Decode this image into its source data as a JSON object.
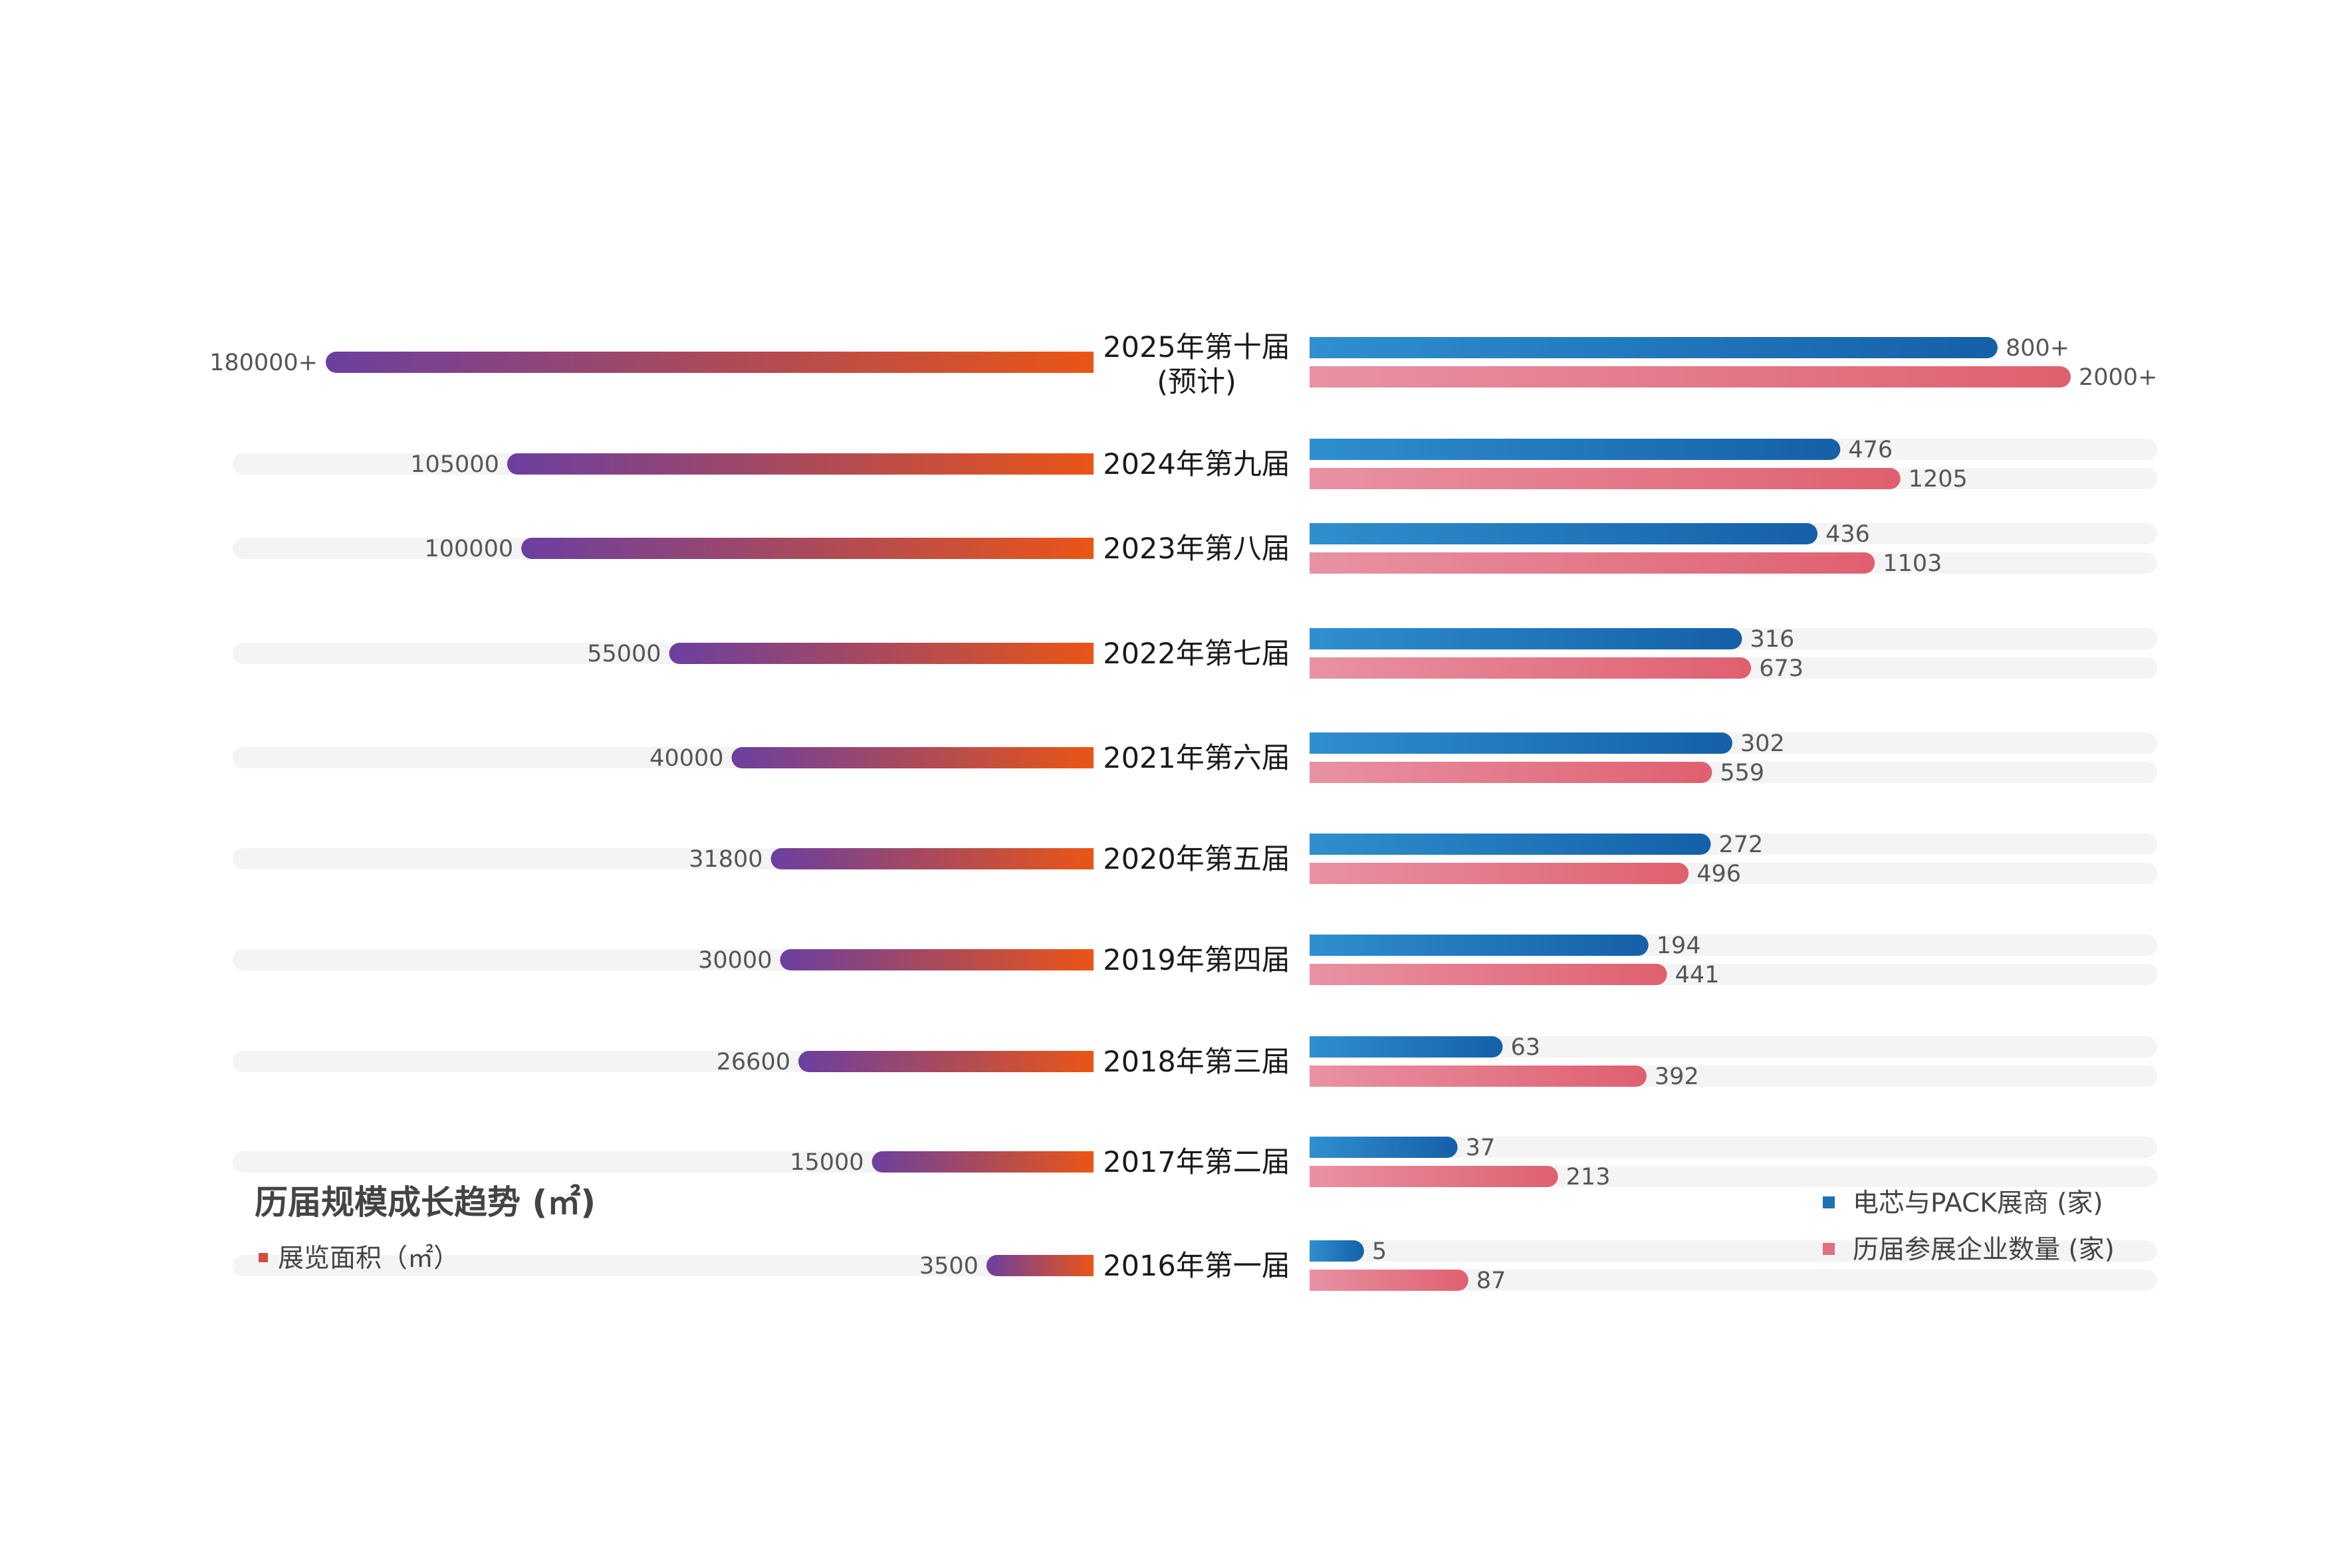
{
  "chart_data": {
    "type": "bar",
    "title": "历届规模成长趋势 (㎡)",
    "left_legend": "展览面积（㎡）",
    "right_legend": [
      "电芯与PACK展商 (家)",
      "历届参展企业数量 (家)"
    ],
    "colors": {
      "area_start": "#6b3fa0",
      "area_end": "#ea5516",
      "blue_start": "#2f8fcf",
      "blue_end": "#1560a8",
      "pink_start": "#e892a4",
      "pink_end": "#df606f",
      "track": "#f4f4f4",
      "legend_blue": "#1f6fb5",
      "legend_pink": "#e0707e"
    },
    "categories": [
      "2025年第十届",
      "2024年第九届",
      "2023年第八届",
      "2022年第七届",
      "2021年第六届",
      "2020年第五届",
      "2019年第四届",
      "2018年第三届",
      "2017年第二届",
      "2016年第一届"
    ],
    "category_sublabels": [
      "(预计)",
      "",
      "",
      "",
      "",
      "",
      "",
      "",
      "",
      ""
    ],
    "series": [
      {
        "name": "展览面积（㎡）",
        "values": [
          180000,
          105000,
          100000,
          55000,
          40000,
          31800,
          30000,
          26600,
          15000,
          3500
        ],
        "labels": [
          "180000+",
          "105000",
          "100000",
          "55000",
          "40000",
          "31800",
          "30000",
          "26600",
          "15000",
          "3500"
        ]
      },
      {
        "name": "电芯与PACK展商 (家)",
        "values": [
          800,
          476,
          436,
          316,
          302,
          272,
          194,
          63,
          37,
          5
        ],
        "labels": [
          "800+",
          "476",
          "436",
          "316",
          "302",
          "272",
          "194",
          "63",
          "37",
          "5"
        ]
      },
      {
        "name": "历届参展企业数量 (家)",
        "values": [
          2000,
          1205,
          1103,
          673,
          559,
          496,
          441,
          392,
          213,
          87
        ],
        "labels": [
          "2000+",
          "1205",
          "1103",
          "673",
          "559",
          "496",
          "441",
          "392",
          "213",
          "87"
        ]
      }
    ]
  }
}
